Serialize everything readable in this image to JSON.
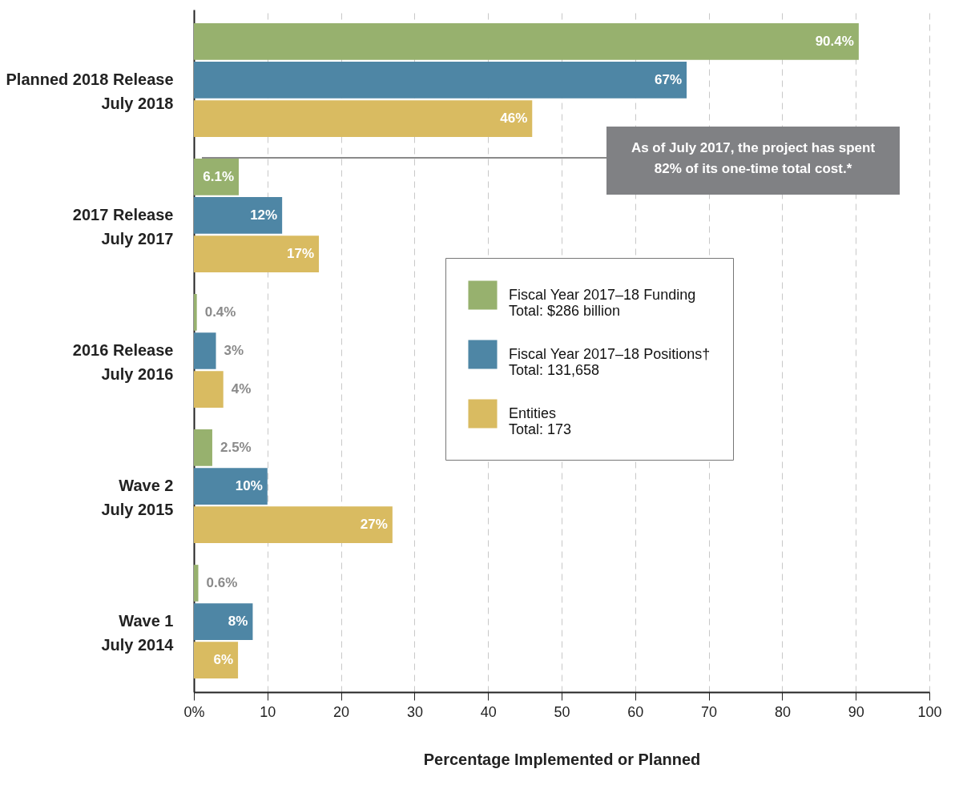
{
  "chart_data": {
    "type": "bar",
    "orientation": "horizontal",
    "categories": [
      "Planned 2018 Release\nJuly 2018",
      "2017 Release\nJuly 2017",
      "2016 Release\nJuly 2016",
      "Wave 2\nJuly 2015",
      "Wave 1\nJuly 2014"
    ],
    "series": [
      {
        "name": "Fiscal Year 2017–18 Funding\nTotal:  $286 billion",
        "color": "#97b16e",
        "values": [
          90.4,
          6.1,
          0.4,
          2.5,
          0.6
        ],
        "value_labels": [
          "90.4%",
          "6.1%",
          "0.4%",
          "2.5%",
          "0.6%"
        ]
      },
      {
        "name": "Fiscal Year 2017–18 Positions†\nTotal:  131,658",
        "color": "#4e86a5",
        "values": [
          67,
          12,
          3,
          10,
          8
        ],
        "value_labels": [
          "67%",
          "12%",
          "3%",
          "10%",
          "8%"
        ]
      },
      {
        "name": "Entities\nTotal:  173",
        "color": "#d9bb61",
        "values": [
          46,
          17,
          4,
          27,
          6
        ],
        "value_labels": [
          "46%",
          "17%",
          "4%",
          "27%",
          "6%"
        ]
      }
    ],
    "xlabel": "Percentage Implemented or Planned",
    "xlim": [
      0,
      100
    ],
    "xticks": [
      {
        "value": 0,
        "label": "0%"
      },
      10,
      20,
      30,
      40,
      50,
      60,
      70,
      80,
      90,
      100
    ],
    "grid": "x",
    "legend": "right",
    "annotations": [
      "As of July 2017, the project has spent 82% of its one-time total cost.*"
    ]
  }
}
